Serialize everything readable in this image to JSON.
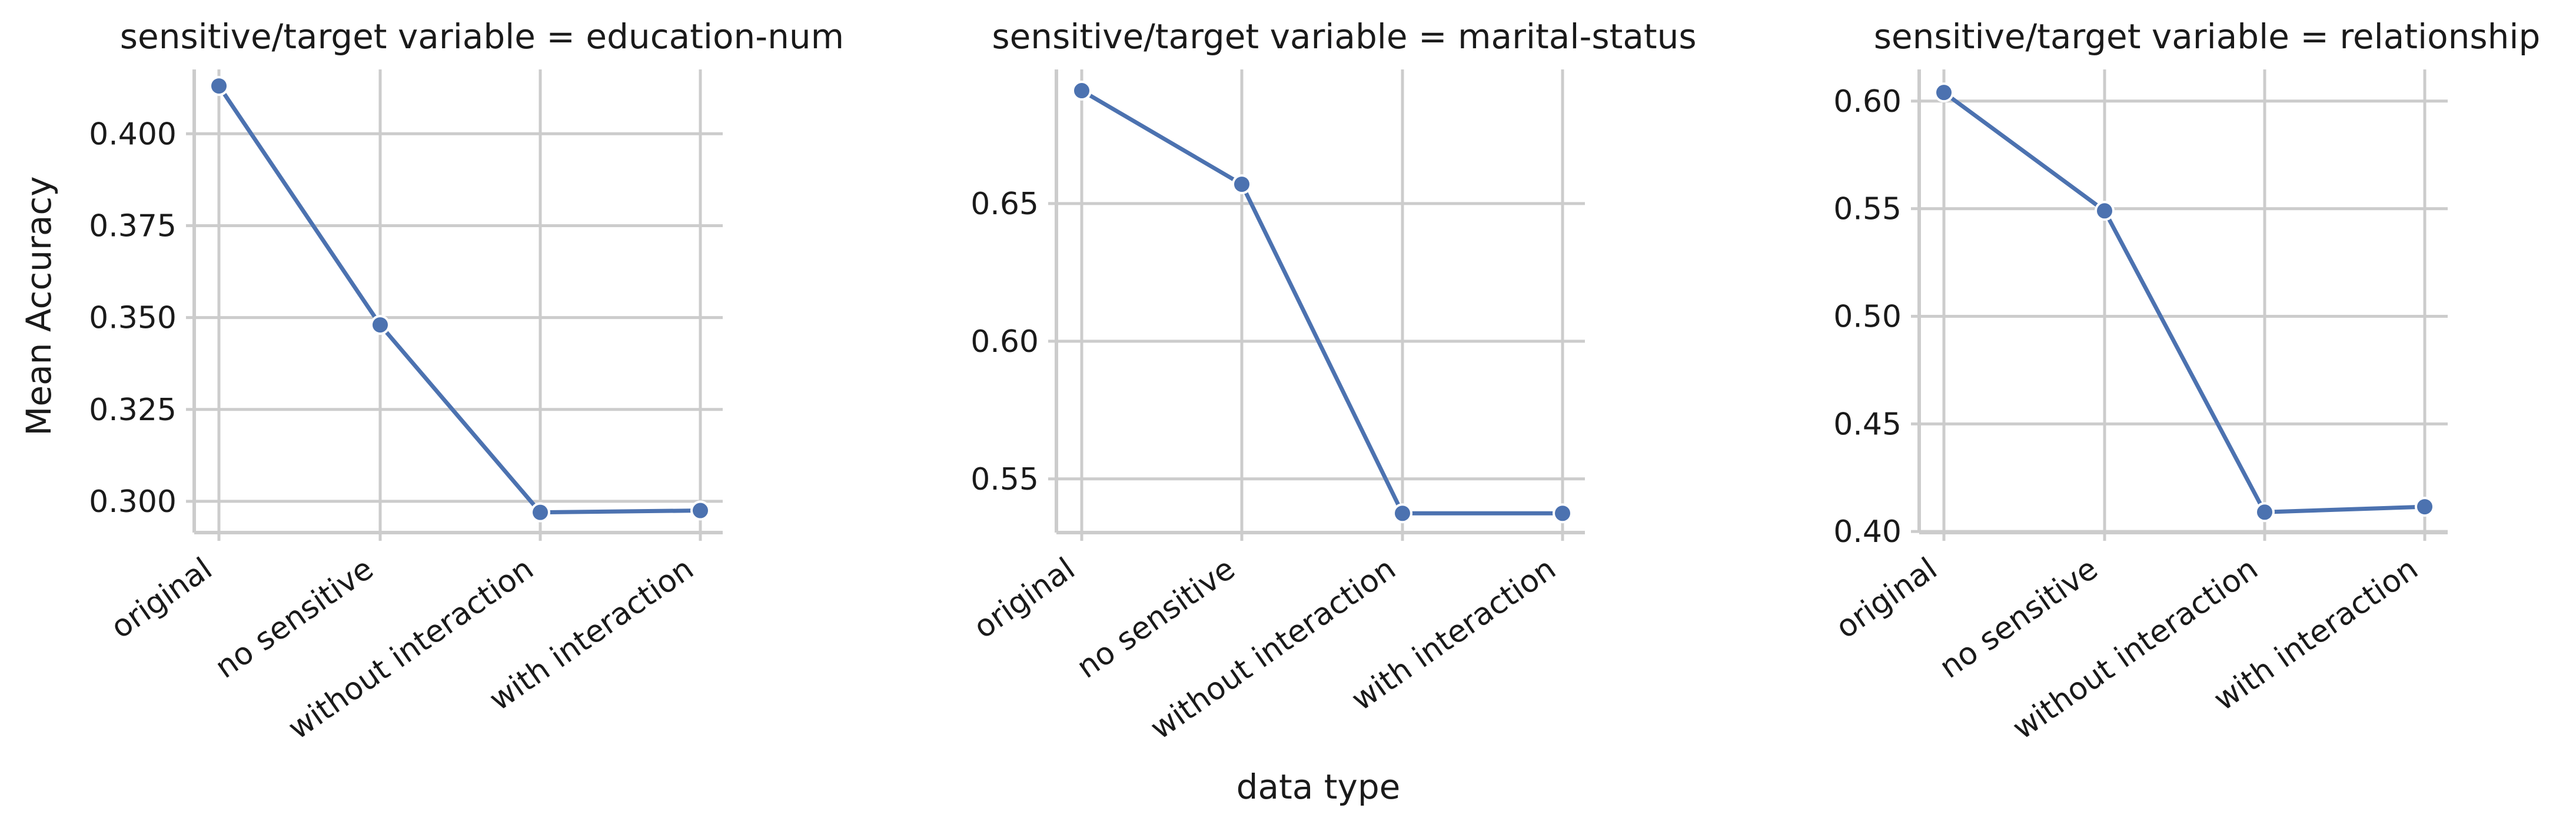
{
  "chart_data": {
    "type": "line",
    "xlabel": "data type",
    "ylabel": "Mean Accuracy",
    "categories": [
      "original",
      "no sensitive",
      "without interaction",
      "with interaction"
    ],
    "grid": true,
    "panels": [
      {
        "title": "sensitive/target variable = education-num",
        "ylim": [
          0.2915,
          0.4175
        ],
        "yticks": [
          0.3,
          0.325,
          0.35,
          0.375,
          0.4
        ],
        "ytick_labels": [
          "0.300",
          "0.325",
          "0.350",
          "0.375",
          "0.400"
        ],
        "values": [
          0.413,
          0.348,
          0.297,
          0.2975
        ]
      },
      {
        "title": "sensitive/target variable = marital-status",
        "ylim": [
          0.5305,
          0.6987
        ],
        "yticks": [
          0.55,
          0.6,
          0.65
        ],
        "ytick_labels": [
          "0.55",
          "0.60",
          "0.65"
        ],
        "values": [
          0.691,
          0.657,
          0.5375,
          0.5375
        ]
      },
      {
        "title": "sensitive/target variable = relationship",
        "ylim": [
          0.3995,
          0.6147
        ],
        "yticks": [
          0.4,
          0.45,
          0.5,
          0.55,
          0.6
        ],
        "ytick_labels": [
          "0.40",
          "0.45",
          "0.50",
          "0.55",
          "0.60"
        ],
        "values": [
          0.604,
          0.549,
          0.409,
          0.4115
        ]
      }
    ]
  }
}
